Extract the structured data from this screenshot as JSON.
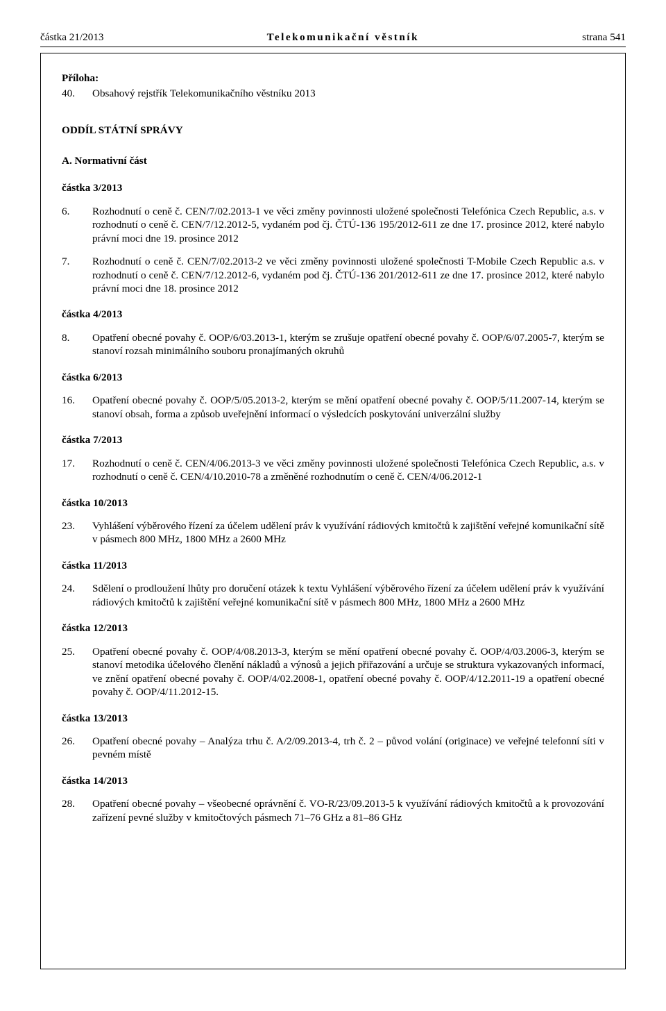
{
  "header": {
    "left": "částka 21/2013",
    "center": "Telekomunikační věstník",
    "right": "strana 541"
  },
  "priloha": {
    "label": "Příloha:",
    "num": "40.",
    "title": "Obsahový rejstřík Telekomunikačního věstníku 2013"
  },
  "oddil": "ODDÍL STÁTNÍ SPRÁVY",
  "normativni": "A.   Normativní část",
  "sections": [
    {
      "heading": "částka 3/2013",
      "items": [
        {
          "num": "6.",
          "text": "Rozhodnutí o ceně č. CEN/7/02.2013-1 ve věci změny povinnosti uložené společnosti Telefónica Czech Republic, a.s. v rozhodnutí o ceně č. CEN/7/12.2012-5, vydaném pod čj. ČTÚ-136 195/2012-611 ze dne 17. prosince 2012, které nabylo právní moci dne 19. prosince 2012"
        },
        {
          "num": "7.",
          "text": "Rozhodnutí o ceně č. CEN/7/02.2013-2 ve věci změny povinnosti uložené společnosti T-Mobile Czech Republic a.s. v rozhodnutí o ceně č. CEN/7/12.2012-6, vydaném pod čj. ČTÚ-136 201/2012-611 ze dne 17. prosince 2012, které nabylo právní moci dne 18. prosince 2012"
        }
      ]
    },
    {
      "heading": "částka 4/2013",
      "items": [
        {
          "num": "8.",
          "text": "Opatření obecné povahy č. OOP/6/03.2013-1, kterým se zrušuje opatření obecné povahy č. OOP/6/07.2005-7, kterým se stanoví rozsah minimálního souboru pronajímaných okruhů"
        }
      ]
    },
    {
      "heading": "částka 6/2013",
      "items": [
        {
          "num": "16.",
          "text": "Opatření obecné povahy č. OOP/5/05.2013-2, kterým se mění opatření obecné povahy č. OOP/5/11.2007-14, kterým se stanoví obsah, forma a způsob uveřejnění informací o výsledcích poskytování univerzální služby"
        }
      ]
    },
    {
      "heading": "částka 7/2013",
      "items": [
        {
          "num": "17.",
          "text": "Rozhodnutí o ceně č. CEN/4/06.2013-3 ve věci změny povinnosti uložené společnosti Telefónica Czech Republic, a.s. v rozhodnutí o ceně č. CEN/4/10.2010-78 a změněné rozhodnutím o ceně č. CEN/4/06.2012-1"
        }
      ]
    },
    {
      "heading": "částka 10/2013",
      "items": [
        {
          "num": "23.",
          "text": "Vyhlášení výběrového řízení za účelem udělení práv k využívání rádiových kmitočtů k zajištění veřejné komunikační sítě v pásmech 800 MHz, 1800 MHz a 2600 MHz"
        }
      ]
    },
    {
      "heading": "částka 11/2013",
      "items": [
        {
          "num": "24.",
          "text": "Sdělení o prodloužení lhůty pro doručení otázek k textu Vyhlášení výběrového řízení za účelem udělení práv k využívání rádiových kmitočtů k zajištění veřejné komunikační sítě v pásmech 800 MHz, 1800 MHz a 2600 MHz"
        }
      ]
    },
    {
      "heading": "částka 12/2013",
      "items": [
        {
          "num": "25.",
          "text": "Opatření obecné povahy č. OOP/4/08.2013-3, kterým se mění opatření obecné povahy č. OOP/4/03.2006-3, kterým se stanoví metodika účelového členění nákladů a výnosů a jejich přiřazování a určuje se struktura vykazovaných informací, ve znění opatření obecné povahy č. OOP/4/02.2008-1, opatření obecné povahy č. OOP/4/12.2011-19 a opatření obecné povahy č. OOP/4/11.2012-15."
        }
      ]
    },
    {
      "heading": "částka 13/2013",
      "items": [
        {
          "num": "26.",
          "text": "Opatření obecné povahy – Analýza trhu č. A/2/09.2013-4, trh č. 2 – původ volání (originace) ve veřejné telefonní síti v pevném místě"
        }
      ]
    },
    {
      "heading": "částka 14/2013",
      "items": [
        {
          "num": "28.",
          "text": "Opatření obecné povahy – všeobecné oprávnění č. VO-R/23/09.2013-5 k využívání rádiových kmitočtů a k provozování zařízení pevné služby v kmitočtových pásmech 71–76 GHz a 81–86 GHz"
        }
      ]
    }
  ]
}
